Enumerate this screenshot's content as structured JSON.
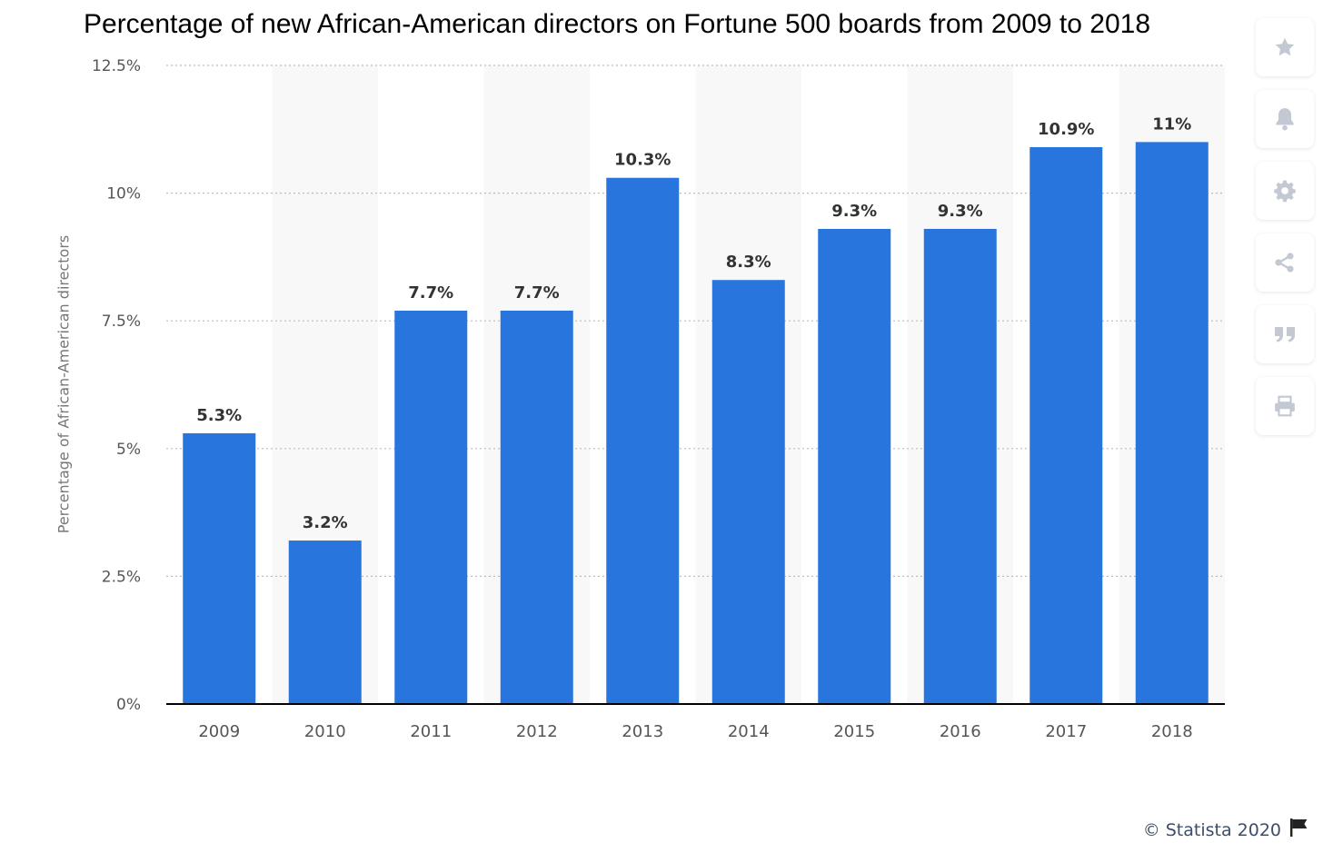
{
  "chart_data": {
    "type": "bar",
    "title": "Percentage of new African-American directors on Fortune 500 boards from 2009 to 2018",
    "ylabel": "Percentage of African-American directors",
    "xlabel": "",
    "categories": [
      "2009",
      "2010",
      "2011",
      "2012",
      "2013",
      "2014",
      "2015",
      "2016",
      "2017",
      "2018"
    ],
    "values": [
      5.3,
      3.2,
      7.7,
      7.7,
      10.3,
      8.3,
      9.3,
      9.3,
      10.9,
      11
    ],
    "data_labels": [
      "5.3%",
      "3.2%",
      "7.7%",
      "7.7%",
      "10.3%",
      "8.3%",
      "9.3%",
      "9.3%",
      "10.9%",
      "11%"
    ],
    "ylim": [
      0,
      12.5
    ],
    "yticks": [
      0,
      2.5,
      5,
      7.5,
      10,
      12.5
    ],
    "ytick_labels": [
      "0%",
      "2.5%",
      "5%",
      "7.5%",
      "10%",
      "12.5%"
    ],
    "grid": true,
    "legend": "none",
    "colors": {
      "bar": "#2876dd",
      "alt_band": "#f8f8f8",
      "grid": "#bcbcbc",
      "axis": "#000000",
      "tick_text": "#555555",
      "label_text": "#333333"
    }
  },
  "toolbar": {
    "buttons": [
      {
        "name": "favorite-button",
        "icon": "star-icon"
      },
      {
        "name": "notification-button",
        "icon": "bell-icon"
      },
      {
        "name": "settings-button",
        "icon": "gear-icon"
      },
      {
        "name": "share-button",
        "icon": "share-icon"
      },
      {
        "name": "cite-button",
        "icon": "quote-icon"
      },
      {
        "name": "print-button",
        "icon": "printer-icon"
      }
    ],
    "icon_color": "#c2c9d2"
  },
  "footer": {
    "copyright": "© Statista 2020",
    "icon": "flag-icon"
  }
}
